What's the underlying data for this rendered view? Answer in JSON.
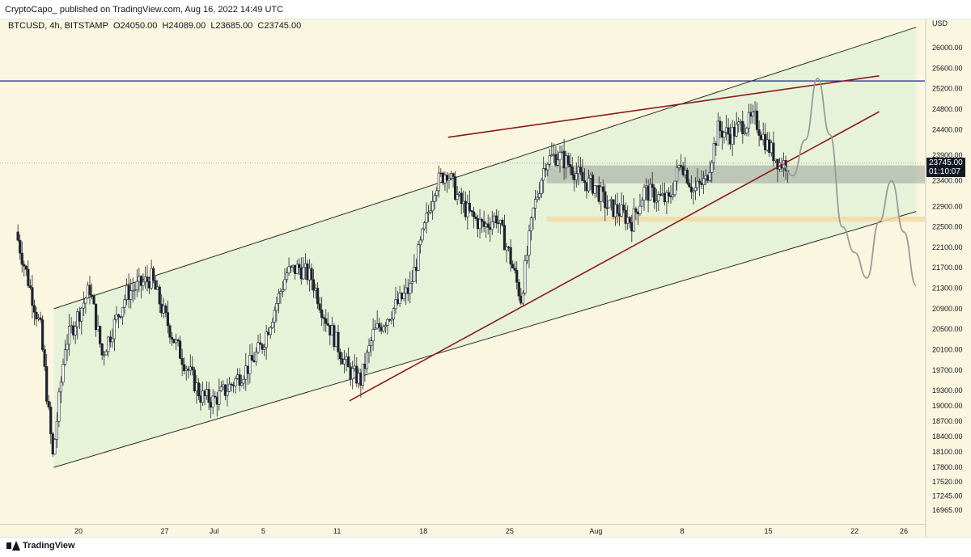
{
  "banner": {
    "text": "CryptoCapo_ published on TradingView.com, Aug 16, 2022 14:49 UTC"
  },
  "legend": {
    "symbol": "BTCUSD, 4h, BITSTAMP",
    "open": "O24050.00",
    "high": "H24089.00",
    "low": "L23685.00",
    "close": "C23745.00"
  },
  "price_tag": {
    "price": "23745.00",
    "countdown": "01:10:07"
  },
  "footer": {
    "logo_text": "TradingView"
  },
  "colors": {
    "background": "#fbf6df",
    "channel_fill": "#e3f2d8",
    "candle": "#1e222d",
    "resistance_line": "#1a1aa6",
    "trend_line": "#8b1a1a",
    "support_zone": "#9aa39a",
    "lower_zone": "#f1d9a8",
    "projection": "#9a9a9a"
  },
  "chart_data": {
    "type": "candlestick",
    "title": "",
    "xlabel": "",
    "ylabel": "USD",
    "ylim": [
      16750,
      26400
    ],
    "y_ticks": [
      26000,
      25600,
      25200,
      24800,
      24400,
      23900,
      23400,
      22900,
      22500,
      22100,
      21700,
      21300,
      20900,
      20500,
      20100,
      19700,
      19300,
      19000,
      18700,
      18400,
      18100,
      17800,
      17520,
      17245,
      16965
    ],
    "y_tick_labels": [
      "26000.00",
      "25600.00",
      "25200.00",
      "24800.00",
      "24400.00",
      "23900.00",
      "23400.00",
      "22900.00",
      "22500.00",
      "22100.00",
      "21700.00",
      "21300.00",
      "20900.00",
      "20500.00",
      "20100.00",
      "19700.00",
      "19300.00",
      "19000.00",
      "18700.00",
      "18400.00",
      "18100.00",
      "17800.00",
      "17520.00",
      "17245.00",
      "16965.00"
    ],
    "x_range": [
      "2022-06-18",
      "2022-08-27"
    ],
    "x_ticks": [
      {
        "date": "2022-06-20",
        "label": "20"
      },
      {
        "date": "2022-06-27",
        "label": "27"
      },
      {
        "date": "2022-07-01",
        "label": "Jul"
      },
      {
        "date": "2022-07-05",
        "label": "5"
      },
      {
        "date": "2022-07-11",
        "label": "11"
      },
      {
        "date": "2022-07-18",
        "label": "18"
      },
      {
        "date": "2022-07-25",
        "label": "25"
      },
      {
        "date": "2022-08-01",
        "label": "Aug"
      },
      {
        "date": "2022-08-08",
        "label": "8"
      },
      {
        "date": "2022-08-15",
        "label": "15"
      },
      {
        "date": "2022-08-22",
        "label": "22"
      },
      {
        "date": "2022-08-26",
        "label": "26"
      }
    ],
    "close_path": [
      [
        "2022-06-15",
        22400
      ],
      [
        "2022-06-17",
        20500
      ],
      [
        "2022-06-18",
        18000
      ],
      [
        "2022-06-19",
        20200
      ],
      [
        "2022-06-21",
        21300
      ],
      [
        "2022-06-22",
        20000
      ],
      [
        "2022-06-24",
        21200
      ],
      [
        "2022-06-26",
        21500
      ],
      [
        "2022-06-27",
        20800
      ],
      [
        "2022-06-28",
        20200
      ],
      [
        "2022-06-30",
        19200
      ],
      [
        "2022-07-01",
        19100
      ],
      [
        "2022-07-02",
        19300
      ],
      [
        "2022-07-04",
        19800
      ],
      [
        "2022-07-05",
        20200
      ],
      [
        "2022-07-07",
        21600
      ],
      [
        "2022-07-08",
        21700
      ],
      [
        "2022-07-09",
        21500
      ],
      [
        "2022-07-10",
        20800
      ],
      [
        "2022-07-12",
        19700
      ],
      [
        "2022-07-13",
        19500
      ],
      [
        "2022-07-14",
        20400
      ],
      [
        "2022-07-16",
        21000
      ],
      [
        "2022-07-17",
        21300
      ],
      [
        "2022-07-18",
        22300
      ],
      [
        "2022-07-19",
        23300
      ],
      [
        "2022-07-20",
        23600
      ],
      [
        "2022-07-21",
        23000
      ],
      [
        "2022-07-22",
        22700
      ],
      [
        "2022-07-23",
        22500
      ],
      [
        "2022-07-24",
        22700
      ],
      [
        "2022-07-25",
        22000
      ],
      [
        "2022-07-26",
        21100
      ],
      [
        "2022-07-27",
        22800
      ],
      [
        "2022-07-28",
        23800
      ],
      [
        "2022-07-29",
        23900
      ],
      [
        "2022-07-30",
        23700
      ],
      [
        "2022-07-31",
        23400
      ],
      [
        "2022-08-01",
        23300
      ],
      [
        "2022-08-02",
        22900
      ],
      [
        "2022-08-03",
        22800
      ],
      [
        "2022-08-04",
        22600
      ],
      [
        "2022-08-05",
        23200
      ],
      [
        "2022-08-06",
        23100
      ],
      [
        "2022-08-07",
        23000
      ],
      [
        "2022-08-08",
        23800
      ],
      [
        "2022-08-09",
        23200
      ],
      [
        "2022-08-10",
        23400
      ],
      [
        "2022-08-11",
        24400
      ],
      [
        "2022-08-12",
        24300
      ],
      [
        "2022-08-13",
        24500
      ],
      [
        "2022-08-14",
        24600
      ],
      [
        "2022-08-15",
        24100
      ],
      [
        "2022-08-16",
        23745
      ]
    ],
    "drawings": {
      "resistance_line": {
        "price": 25350
      },
      "rising_channel": {
        "lower": [
          [
            "2022-06-18",
            17800
          ],
          [
            "2022-08-27",
            22800
          ]
        ],
        "upper": [
          [
            "2022-06-18",
            20900
          ],
          [
            "2022-08-27",
            26400
          ]
        ]
      },
      "upper_trend_line": [
        [
          "2022-07-20",
          24250
        ],
        [
          "2022-08-24",
          25450
        ]
      ],
      "lower_trend_line": [
        [
          "2022-07-12",
          19100
        ],
        [
          "2022-08-24",
          24750
        ]
      ],
      "support_zone": {
        "from": "2022-07-28",
        "to": "2022-08-27",
        "y_range": [
          23350,
          23700
        ]
      },
      "lower_zone": {
        "from": "2022-07-28",
        "to": "2022-08-27",
        "y_range": [
          22600,
          22700
        ]
      },
      "projection_path": [
        [
          "2022-08-16",
          23745
        ],
        [
          "2022-08-17",
          23500
        ],
        [
          "2022-08-18",
          24200
        ],
        [
          "2022-08-19",
          25400
        ],
        [
          "2022-08-20",
          24300
        ],
        [
          "2022-08-21",
          22500
        ],
        [
          "2022-08-22",
          22000
        ],
        [
          "2022-08-23",
          21500
        ],
        [
          "2022-08-24",
          22600
        ],
        [
          "2022-08-25",
          23400
        ],
        [
          "2022-08-26",
          22400
        ],
        [
          "2022-08-27",
          21350
        ]
      ]
    }
  }
}
